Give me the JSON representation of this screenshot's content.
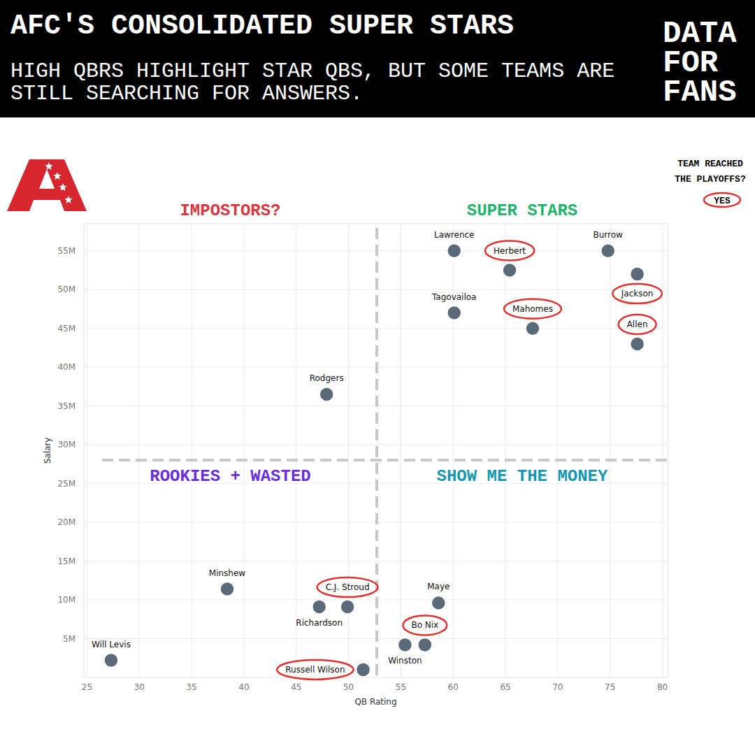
{
  "chart_data": {
    "type": "scatter",
    "title": "AFC'S CONSOLIDATED SUPER STARS",
    "subtitle": "HIGH QBRS HIGHLIGHT STAR QBS, BUT SOME TEAMS ARE STILL SEARCHING FOR ANSWERS.",
    "brand": "DATA FOR FANS",
    "x_label": "QB Rating",
    "y_label": "Salary",
    "labels": [
      "Lawrence",
      "Herbert",
      "Burrow",
      "Jackson",
      "Tagovailoa",
      "Mahomes",
      "Allen",
      "Rodgers",
      "Minshew",
      "C.J. Stroud",
      "Richardson",
      "Maye",
      "Bo Nix",
      "Winston",
      "Russell Wilson",
      "Will Levis"
    ],
    "x": [
      60.1,
      65.4,
      74.8,
      77.6,
      60.1,
      67.6,
      77.6,
      47.9,
      38.4,
      49.9,
      47.2,
      58.6,
      57.3,
      55.4,
      51.4,
      27.3
    ],
    "values": [
      55,
      52.5,
      55,
      52,
      47,
      45,
      43,
      36.5,
      11.4,
      9.1,
      9.1,
      9.6,
      4.2,
      4.2,
      1,
      2.2
    ],
    "playoffs": [
      false,
      true,
      false,
      true,
      false,
      true,
      true,
      false,
      false,
      true,
      false,
      false,
      true,
      false,
      true,
      false
    ],
    "x_divider": 52.7,
    "y_divider": 28,
    "quadrant_labels": [
      {
        "text": "IMPOSTORS?",
        "color": "#d7373f"
      },
      {
        "text": "SUPER STARS",
        "color": "#1db36b"
      },
      {
        "text": "ROOKIES + WASTED",
        "color": "#6a2fd6"
      },
      {
        "text": "SHOW ME THE MONEY",
        "color": "#1598b0"
      }
    ],
    "legend_title": "TEAM REACHED THE PLAYOFFS?",
    "legend_label": "YES",
    "legend": "top-right",
    "color": "#e0332f",
    "marker": "circle",
    "grid": true,
    "xlim": [
      24.7,
      80.5
    ],
    "xticks": [
      25,
      30,
      35,
      40,
      45,
      50,
      55,
      60,
      65,
      70,
      75,
      80
    ],
    "ylim": [
      0,
      58.5
    ],
    "yticks": [
      {
        "value": 5,
        "label": "5M"
      },
      {
        "value": 10,
        "label": "10M"
      },
      {
        "value": 15,
        "label": "15M"
      },
      {
        "value": 20,
        "label": "20M"
      },
      {
        "value": 25,
        "label": "25M"
      },
      {
        "value": 30,
        "label": "30M"
      },
      {
        "value": 35,
        "label": "35M"
      },
      {
        "value": 40,
        "label": "40M"
      },
      {
        "value": 45,
        "label": "45M"
      },
      {
        "value": 50,
        "label": "50M"
      },
      {
        "value": 55,
        "label": "55M"
      }
    ]
  }
}
